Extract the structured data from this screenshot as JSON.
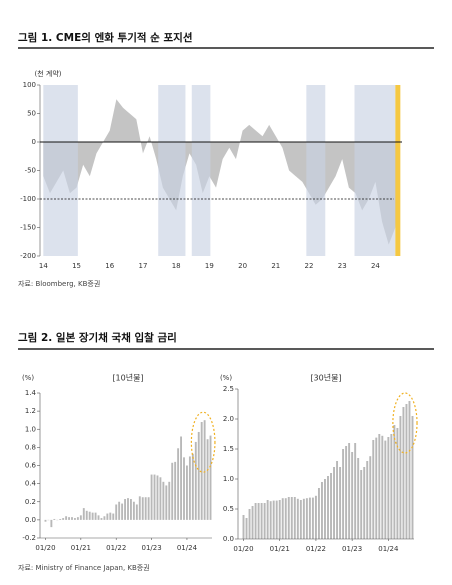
{
  "figure1": {
    "title": "그림 1. CME의 엔화 투기적 순 포지션",
    "source": "자료: Bloomberg, KB증권"
  },
  "figure2": {
    "title": "그림 2. 일본 장기채 국채 입찰 금리",
    "source": "자료: Ministry of Finance Japan, KB증권"
  },
  "chart_data": [
    {
      "type": "area",
      "unit": "(천 계약)",
      "color": "#c4c4c4",
      "x": [
        14.0,
        14.2,
        14.4,
        14.6,
        14.8,
        15.0,
        15.2,
        15.4,
        15.6,
        15.8,
        16.0,
        16.2,
        16.4,
        16.6,
        16.8,
        17.0,
        17.2,
        17.4,
        17.6,
        17.8,
        18.0,
        18.2,
        18.4,
        18.6,
        18.8,
        19.0,
        19.2,
        19.4,
        19.6,
        19.8,
        20.0,
        20.2,
        20.4,
        20.6,
        20.8,
        21.0,
        21.2,
        21.4,
        21.6,
        21.8,
        22.0,
        22.2,
        22.4,
        22.6,
        22.8,
        23.0,
        23.2,
        23.4,
        23.6,
        23.8,
        24.0,
        24.2,
        24.4,
        24.6,
        24.7
      ],
      "values": [
        -60,
        -90,
        -70,
        -50,
        -90,
        -80,
        -40,
        -60,
        -20,
        0,
        20,
        75,
        60,
        50,
        40,
        -20,
        10,
        -30,
        -80,
        -100,
        -120,
        -60,
        -20,
        -40,
        -90,
        -60,
        -80,
        -30,
        -10,
        -30,
        20,
        30,
        20,
        10,
        30,
        10,
        -10,
        -50,
        -60,
        -70,
        -90,
        -110,
        -100,
        -80,
        -60,
        -30,
        -80,
        -90,
        -120,
        -100,
        -70,
        -140,
        -180,
        -150,
        20
      ],
      "xlim": [
        13.9,
        24.8
      ],
      "xticks": [
        14,
        15,
        16,
        17,
        18,
        19,
        20,
        21,
        22,
        23,
        24
      ],
      "ylim": [
        -200,
        100
      ],
      "yticks": [
        100,
        50,
        0,
        -50,
        -100,
        -150,
        -200
      ],
      "reference_line": -100,
      "shaded_ranges": [
        [
          14.0,
          15.04
        ],
        [
          17.46,
          18.28
        ],
        [
          18.47,
          19.03
        ],
        [
          21.92,
          22.49
        ],
        [
          23.37,
          24.6
        ]
      ],
      "shade_color": "#c9d3e3",
      "highlight_range": [
        24.6,
        24.75
      ],
      "highlight_color": "#f5c842"
    },
    {
      "type": "bar",
      "title": "[10년물]",
      "unit": "(%)",
      "color": "#b8b8b8",
      "categories": [
        "01/20",
        null,
        null,
        null,
        null,
        null,
        null,
        null,
        null,
        null,
        null,
        null,
        "01/21",
        null,
        null,
        null,
        null,
        null,
        null,
        null,
        null,
        null,
        null,
        null,
        "01/22",
        null,
        null,
        null,
        null,
        null,
        null,
        null,
        null,
        null,
        null,
        null,
        "01/23",
        null,
        null,
        null,
        null,
        null,
        null,
        null,
        null,
        null,
        null,
        null,
        "01/24",
        null,
        null,
        null,
        null,
        null,
        null,
        null,
        null
      ],
      "values": [
        -0.02,
        0.0,
        -0.08,
        0.01,
        0.0,
        0.01,
        0.02,
        0.04,
        0.03,
        0.03,
        0.02,
        0.03,
        0.05,
        0.13,
        0.1,
        0.09,
        0.08,
        0.08,
        0.05,
        0.02,
        0.04,
        0.07,
        0.08,
        0.07,
        0.17,
        0.2,
        0.18,
        0.23,
        0.24,
        0.23,
        0.2,
        0.17,
        0.26,
        0.25,
        0.25,
        0.25,
        0.5,
        0.5,
        0.49,
        0.47,
        0.42,
        0.38,
        0.42,
        0.63,
        0.64,
        0.79,
        0.92,
        0.69,
        0.6,
        0.7,
        0.73,
        0.86,
        0.97,
        1.08,
        1.1,
        0.89,
        0.93
      ],
      "ylim": [
        -0.2,
        1.4
      ],
      "yticks": [
        1.4,
        1.2,
        {
          "value": 1.0,
          "label": "1.0"
        },
        0.8,
        0.6,
        0.4,
        0.2,
        {
          "value": 0,
          "label": "0.0"
        },
        -0.2
      ]
    },
    {
      "type": "bar",
      "title": "[30년물]",
      "unit": "(%)",
      "color": "#b8b8b8",
      "categories": [
        "01/20",
        null,
        null,
        null,
        null,
        null,
        null,
        null,
        null,
        null,
        null,
        null,
        "01/21",
        null,
        null,
        null,
        null,
        null,
        null,
        null,
        null,
        null,
        null,
        null,
        "01/22",
        null,
        null,
        null,
        null,
        null,
        null,
        null,
        null,
        null,
        null,
        null,
        "01/23",
        null,
        null,
        null,
        null,
        null,
        null,
        null,
        null,
        null,
        null,
        null,
        "01/24",
        null,
        null,
        null,
        null,
        null,
        null,
        null,
        null
      ],
      "values": [
        0.4,
        0.35,
        0.5,
        0.55,
        0.6,
        0.6,
        0.6,
        0.6,
        0.65,
        0.63,
        0.64,
        0.64,
        0.65,
        0.68,
        0.68,
        0.7,
        0.7,
        0.7,
        0.67,
        0.65,
        0.67,
        0.68,
        0.69,
        0.69,
        0.72,
        0.85,
        0.95,
        1.0,
        1.05,
        1.1,
        1.2,
        1.3,
        1.2,
        1.5,
        1.55,
        1.6,
        1.45,
        1.6,
        1.35,
        1.15,
        1.2,
        1.3,
        1.38,
        1.65,
        1.69,
        1.75,
        1.72,
        1.64,
        1.7,
        1.75,
        1.9,
        1.85,
        2.05,
        2.2,
        2.25,
        2.3,
        2.05
      ],
      "ylim": [
        0,
        2.5
      ],
      "yticks": [
        2.5,
        {
          "value": 2,
          "label": "2.0"
        },
        1.5,
        {
          "value": 1,
          "label": "1.0"
        },
        0.5,
        {
          "value": 0,
          "label": "0.0"
        }
      ]
    }
  ]
}
